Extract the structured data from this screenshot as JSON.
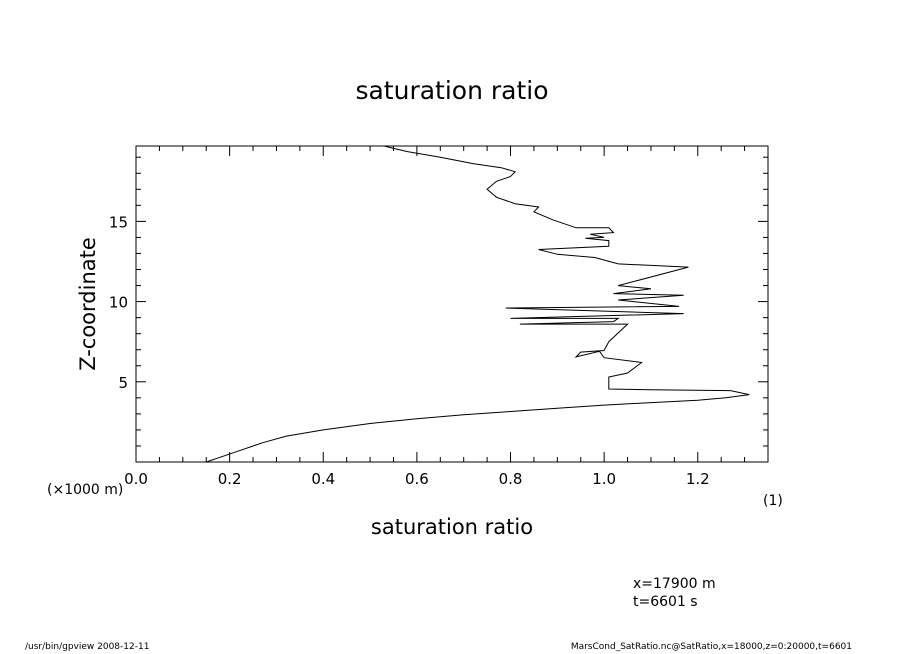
{
  "chart_data": {
    "type": "line",
    "title": "saturation ratio",
    "xlabel": "saturation ratio",
    "ylabel": "Z-coordinate",
    "y_unit_label": "(×1000 m)",
    "x_unit_label": "(1)",
    "xlim": [
      0.0,
      1.35
    ],
    "ylim": [
      0,
      19.7
    ],
    "xticks": [
      "0.0",
      "0.2",
      "0.4",
      "0.6",
      "0.8",
      "1.0",
      "1.2"
    ],
    "yticks": [
      "5",
      "10",
      "15"
    ],
    "grid": false,
    "series": [
      {
        "x": [
          0.15,
          0.18,
          0.22,
          0.27,
          0.32,
          0.4,
          0.5,
          0.6,
          0.7,
          0.8,
          0.9,
          1.0,
          1.1,
          1.2,
          1.26,
          1.31,
          1.27,
          1.1,
          1.01,
          1.01,
          1.05,
          1.08,
          1.0,
          0.99,
          0.94,
          0.95,
          1.0,
          1.01,
          1.05,
          0.82,
          1.02,
          1.03,
          0.8,
          1.17,
          0.79,
          1.16,
          1.03,
          1.17,
          1.02,
          1.1,
          1.03,
          1.18,
          1.03,
          0.98,
          0.9,
          0.86,
          1.01,
          1.01,
          0.96,
          1.0,
          0.97,
          1.02,
          1.01,
          0.94,
          0.89,
          0.85,
          0.86,
          0.81,
          0.77,
          0.75,
          0.77,
          0.8,
          0.81,
          0.78,
          0.72,
          0.65,
          0.58,
          0.55,
          0.53
        ],
        "y": [
          0.0,
          0.3,
          0.7,
          1.2,
          1.6,
          2.0,
          2.4,
          2.7,
          2.95,
          3.15,
          3.35,
          3.55,
          3.7,
          3.85,
          4.0,
          4.2,
          4.45,
          4.5,
          4.55,
          5.3,
          5.55,
          6.2,
          6.5,
          6.9,
          6.55,
          6.85,
          6.95,
          7.5,
          8.6,
          8.6,
          8.75,
          8.95,
          8.95,
          9.25,
          9.6,
          9.7,
          10.1,
          10.4,
          10.5,
          10.8,
          11.0,
          12.15,
          12.35,
          12.75,
          12.95,
          13.25,
          13.45,
          13.8,
          13.95,
          14.0,
          14.2,
          14.3,
          14.6,
          14.6,
          15.1,
          15.6,
          15.9,
          16.1,
          16.5,
          17.0,
          17.5,
          17.8,
          18.1,
          18.35,
          18.6,
          19.0,
          19.35,
          19.55,
          19.7
        ]
      }
    ]
  },
  "annotations": {
    "info_x": "x=17900  m",
    "info_t": "t=6601  s",
    "footer_left": "/usr/bin/gpview   2008-12-11",
    "footer_right": "MarsCond_SatRatio.nc@SatRatio,x=18000,z=0:20000,t=6601"
  }
}
